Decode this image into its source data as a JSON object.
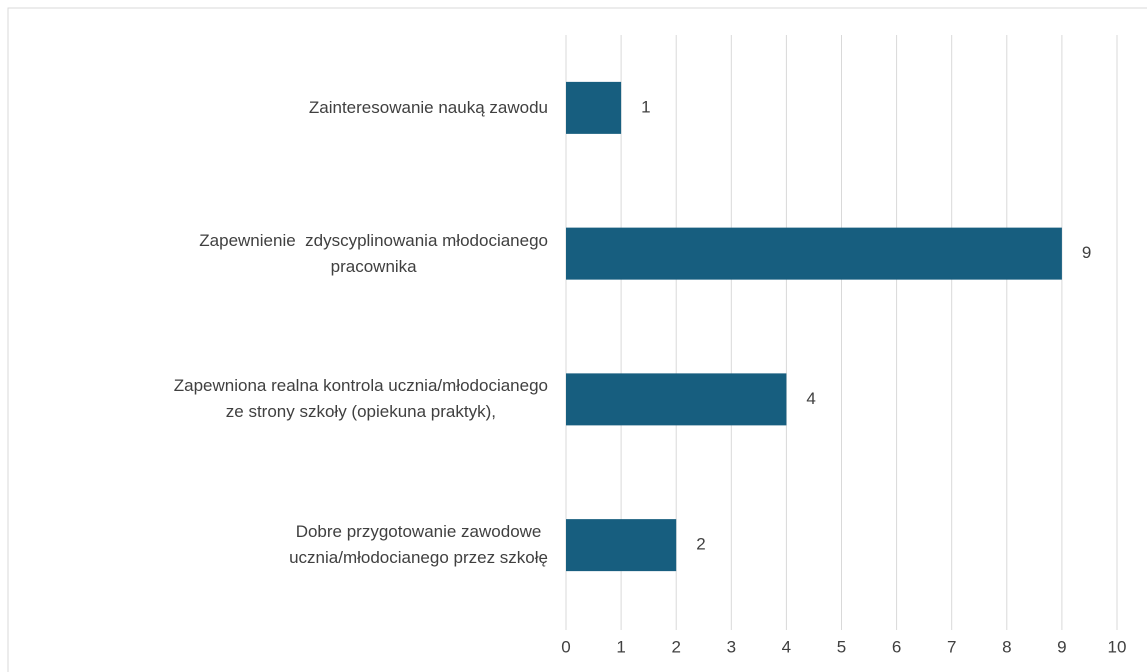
{
  "chart_data": {
    "type": "barh",
    "categories": [
      "Zainteresowanie nauką zawodu",
      "Zapewnienie  zdyscyplinowania młodocianego\npracownika",
      "Zapewniona realna kontrola ucznia/młodocianego\nze strony szkoły (opiekuna praktyk),",
      "Dobre przygotowanie zawodowe\nucznia/młodocianego przez szkołę"
    ],
    "values": [
      1,
      9,
      4,
      2
    ],
    "color": "#175e7f",
    "xlim": [
      0,
      10
    ],
    "xticks": [
      0,
      1,
      2,
      3,
      4,
      5,
      6,
      7,
      8,
      9,
      10
    ],
    "grid": true,
    "data_labels": true
  }
}
